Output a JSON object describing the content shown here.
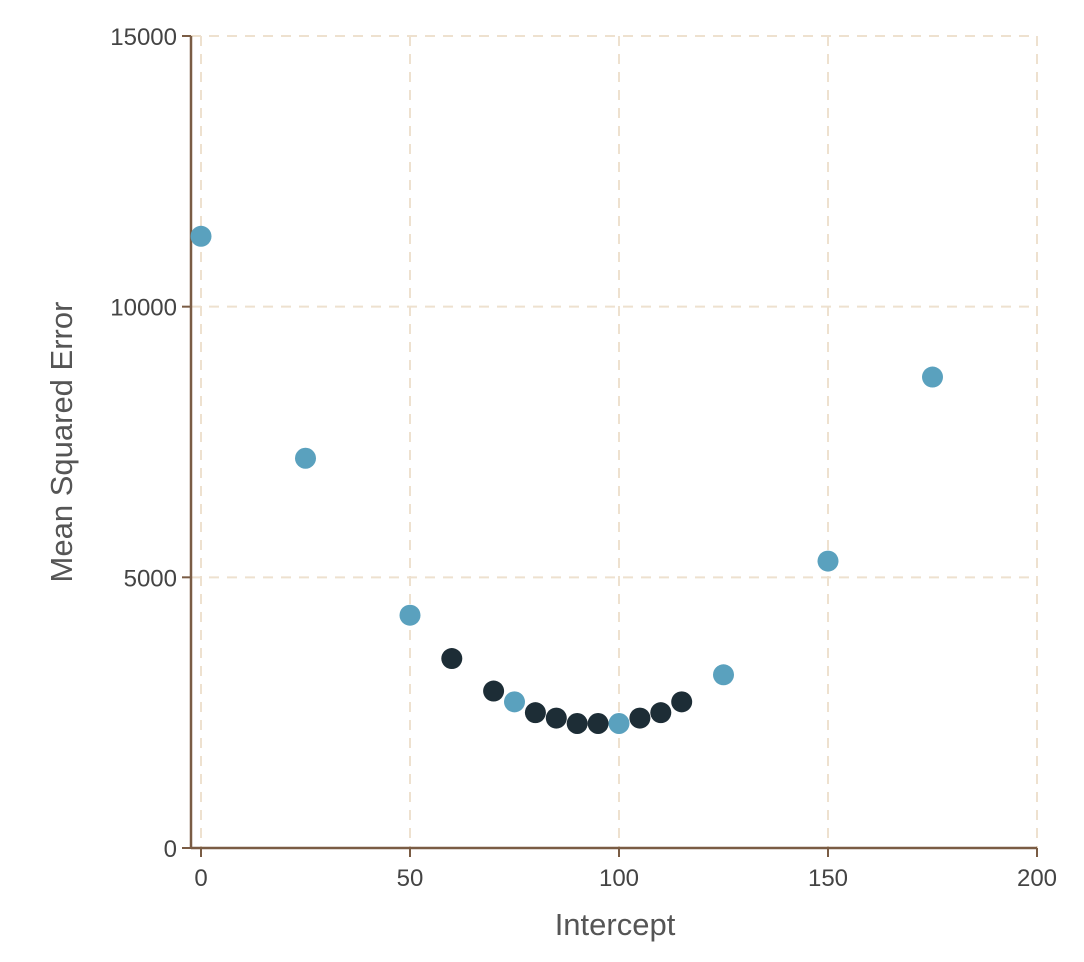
{
  "chart_data": {
    "type": "scatter",
    "xlabel": "Intercept",
    "ylabel": "Mean Squared Error",
    "xlim": [
      0,
      200
    ],
    "ylim": [
      0,
      15000
    ],
    "xticks": [
      0,
      50,
      100,
      150,
      200
    ],
    "yticks": [
      0,
      5000,
      10000,
      15000
    ],
    "grid": true,
    "series": [
      {
        "color": "#5aa1be",
        "points": [
          {
            "x": 0,
            "y": 11300
          },
          {
            "x": 25,
            "y": 7200
          },
          {
            "x": 50,
            "y": 4300
          },
          {
            "x": 75,
            "y": 2700
          },
          {
            "x": 100,
            "y": 2300
          },
          {
            "x": 125,
            "y": 3200
          },
          {
            "x": 150,
            "y": 5300
          },
          {
            "x": 175,
            "y": 8700
          }
        ]
      },
      {
        "color": "#1d2d36",
        "points": [
          {
            "x": 60,
            "y": 3500
          },
          {
            "x": 70,
            "y": 2900
          },
          {
            "x": 80,
            "y": 2500
          },
          {
            "x": 85,
            "y": 2400
          },
          {
            "x": 90,
            "y": 2300
          },
          {
            "x": 95,
            "y": 2300
          },
          {
            "x": 105,
            "y": 2400
          },
          {
            "x": 110,
            "y": 2500
          },
          {
            "x": 115,
            "y": 2700
          }
        ]
      }
    ]
  }
}
